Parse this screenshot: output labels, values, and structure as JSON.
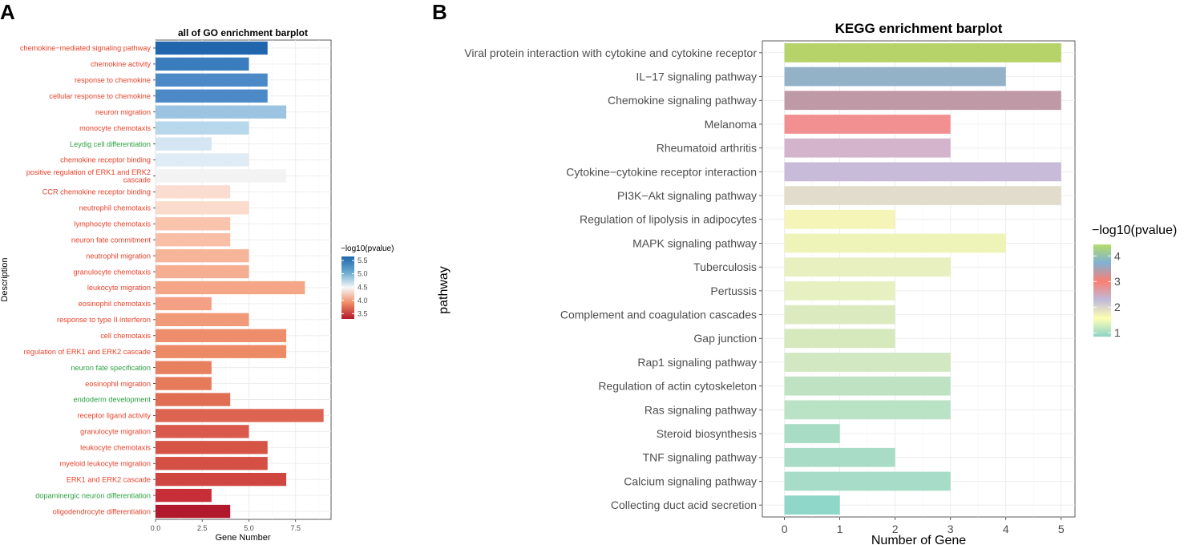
{
  "chart_data": [
    {
      "panel_label": "A",
      "type": "bar",
      "orientation": "horizontal",
      "title": "all of GO enrichment barplot",
      "xlabel": "Gene Number",
      "ylabel": "Description",
      "xlim": [
        0,
        9.4
      ],
      "x_ticks": [
        "0.0",
        "2.5",
        "5.0",
        "7.5"
      ],
      "x_tick_values": [
        0,
        2.5,
        5,
        7.5
      ],
      "grid": true,
      "categories": [
        "chemokine−mediated signaling pathway",
        "chemokine activity",
        "response to chemokine",
        "cellular response to chemokine",
        "neuron migration",
        "monocyte chemotaxis",
        "Leydig cell differentiation",
        "chemokine receptor binding",
        "positive regulation of ERK1 and ERK2 cascade",
        "CCR chemokine receptor binding",
        "neutrophil chemotaxis",
        "lymphocyte chemotaxis",
        "neuron fate commitment",
        "neutrophil migration",
        "granulocyte chemotaxis",
        "leukocyte migration",
        "eosinophil chemotaxis",
        "response to type II interferon",
        "cell chemotaxis",
        "regulation of ERK1 and ERK2 cascade",
        "neuron fate specification",
        "eosinophil migration",
        "endoderm development",
        "receptor ligand activity",
        "granulocyte migration",
        "leukocyte chemotaxis",
        "myeloid leukocyte migration",
        "ERK1 and ERK2 cascade",
        "dopaminergic neuron differentiation",
        "oligodendrocyte differentiation"
      ],
      "values": [
        6,
        5,
        6,
        6,
        7,
        5,
        3,
        5,
        7,
        4,
        5,
        4,
        4,
        5,
        5,
        8,
        3,
        5,
        7,
        7,
        3,
        3,
        4,
        9,
        5,
        6,
        6,
        7,
        3,
        4
      ],
      "neg_log10_pvalue": [
        5.65,
        5.5,
        5.45,
        5.4,
        5.05,
        4.8,
        4.6,
        4.55,
        4.4,
        4.15,
        4.05,
        3.98,
        3.95,
        3.92,
        3.9,
        3.87,
        3.84,
        3.8,
        3.77,
        3.77,
        3.74,
        3.72,
        3.66,
        3.6,
        3.56,
        3.53,
        3.5,
        3.48,
        3.4,
        3.3
      ],
      "label_colors": [
        "#e8432c",
        "#e8432c",
        "#e8432c",
        "#e8432c",
        "#e8432c",
        "#e8432c",
        "#2ea043",
        "#e8432c",
        "#e8432c",
        "#e8432c",
        "#e8432c",
        "#e8432c",
        "#e8432c",
        "#e8432c",
        "#e8432c",
        "#e8432c",
        "#e8432c",
        "#e8432c",
        "#e8432c",
        "#e8432c",
        "#2ea043",
        "#e8432c",
        "#2ea043",
        "#e8432c",
        "#e8432c",
        "#e8432c",
        "#e8432c",
        "#e8432c",
        "#2ea043",
        "#e8432c"
      ],
      "bar_colors": [
        "#2166ac",
        "#3a7dbe",
        "#4b8ac6",
        "#4b8ac6",
        "#9ac4e1",
        "#b7d7ea",
        "#d4e6f2",
        "#dfecf5",
        "#f3f3f3",
        "#fbdcd0",
        "#fbdbcc",
        "#f9c3ac",
        "#f8bea6",
        "#f6b498",
        "#f6ae92",
        "#f4a686",
        "#f4a085",
        "#f09a7a",
        "#ed8d6b",
        "#ec8a66",
        "#e7805e",
        "#e57b5a",
        "#df6e53",
        "#dc6451",
        "#d95a4c",
        "#d55446",
        "#d44f44",
        "#cf4540",
        "#c82e37",
        "#b2182b"
      ],
      "legend": {
        "title": "−log10(pvalue)",
        "labels": [
          "5.5",
          "5.0",
          "4.5",
          "4.0",
          "3.5"
        ],
        "label_values": [
          5.5,
          5.0,
          4.5,
          4.0,
          3.5
        ],
        "range": [
          3.3,
          5.65
        ],
        "colors": [
          "#b2182b",
          "#ef8a62",
          "#f7f7f7",
          "#67a9cf",
          "#2166ac"
        ]
      }
    },
    {
      "panel_label": "B",
      "type": "bar",
      "orientation": "horizontal",
      "title": "KEGG enrichment barplot",
      "xlabel": "Number of Gene",
      "ylabel": "pathway",
      "xlim": [
        -0.4,
        5.25
      ],
      "x_ticks": [
        "0",
        "1",
        "2",
        "3",
        "4",
        "5"
      ],
      "x_tick_values": [
        0,
        1,
        2,
        3,
        4,
        5
      ],
      "grid": true,
      "categories": [
        "Viral protein interaction with cytokine and cytokine receptor",
        "IL−17 signaling pathway",
        "Chemokine signaling pathway",
        "Melanoma",
        "Rheumatoid arthritis",
        "Cytokine−cytokine receptor interaction",
        "PI3K−Akt signaling pathway",
        "Regulation of lipolysis in adipocytes",
        "MAPK signaling pathway",
        "Tuberculosis",
        "Pertussis",
        "Complement and coagulation cascades",
        "Gap junction",
        "Rap1 signaling pathway",
        "Regulation of actin cytoskeleton",
        "Ras signaling pathway",
        "Steroid biosynthesis",
        "TNF signaling pathway",
        "Calcium signaling pathway",
        "Collecting duct acid secretion"
      ],
      "values": [
        5,
        4,
        5,
        3,
        3,
        5,
        5,
        2,
        4,
        3,
        2,
        2,
        2,
        3,
        3,
        3,
        1,
        2,
        3,
        1
      ],
      "bar_colors": [
        "#b5d369",
        "#93b2c8",
        "#bf9aa6",
        "#f29091",
        "#d4b3cd",
        "#c8bbd9",
        "#e2dccc",
        "#f4f5b7",
        "#eef3b7",
        "#e9f0bf",
        "#e6f0c0",
        "#dceac0",
        "#d6e9bd",
        "#d1e8c2",
        "#bfe2c3",
        "#bae2c4",
        "#a9dcc5",
        "#a8dcc6",
        "#a6dcc8",
        "#8fd7c8"
      ],
      "legend": {
        "title": "−log10(pvalue)",
        "labels": [
          "4",
          "3",
          "2",
          "1"
        ],
        "label_values": [
          4,
          3,
          2,
          1
        ],
        "range": [
          0.85,
          4.45
        ],
        "colors": [
          "#8dd3c7",
          "#ffffb3",
          "#bebada",
          "#fb8072",
          "#80b1d3",
          "#b3de69"
        ]
      }
    }
  ]
}
